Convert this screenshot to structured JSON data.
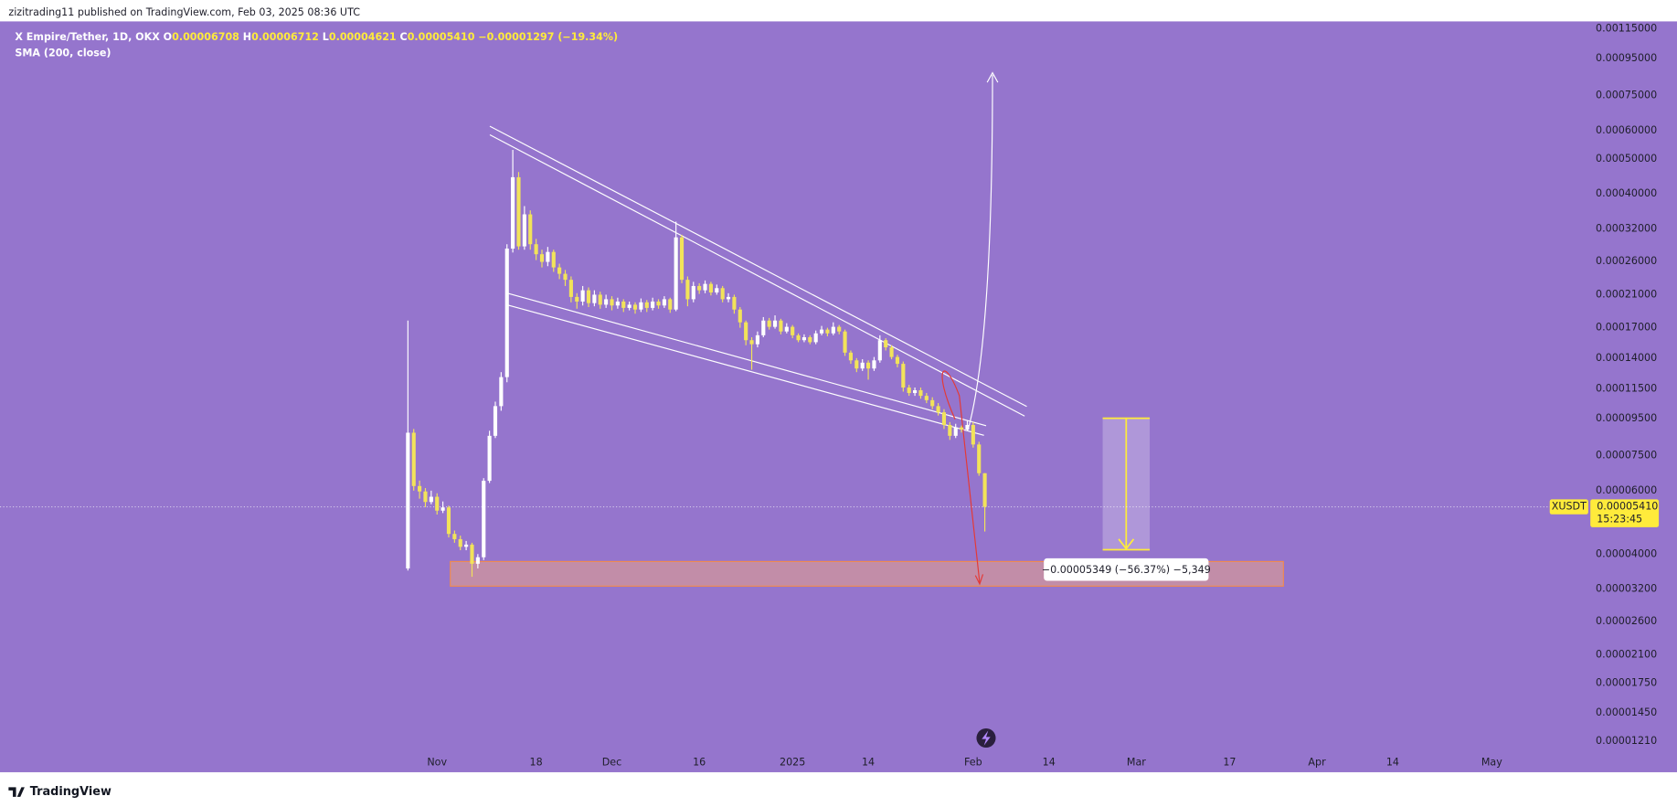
{
  "header": {
    "published": "zizitrading11 published on TradingView.com, Feb 03, 2025 08:36 UTC"
  },
  "chart_data": {
    "type": "candlestick",
    "symbol": "X Empire/Tether, 1D, OKX",
    "ohlc_legend": [
      {
        "key": "O",
        "text": "0.00006708"
      },
      {
        "key": "H",
        "text": "0.00006712"
      },
      {
        "key": "L",
        "text": "0.00004621"
      },
      {
        "key": "C",
        "text": "0.00005410"
      }
    ],
    "change": "−0.00001297 (−19.34%)",
    "indicator": "SMA (200, close)",
    "open": [
      3.65e-05,
      8.69e-05,
      6.18e-05,
      5.97e-05,
      5.58e-05,
      5.77e-05,
      5.28e-05,
      5.39e-05,
      4.55e-05,
      4.4e-05,
      4.19e-05,
      4.25e-05,
      3.76e-05,
      3.92e-05,
      6.39e-05,
      8.52e-05,
      0.000103,
      0.000124,
      0.000282,
      0.000445,
      0.000286,
      0.000351,
      0.00029,
      0.000272,
      0.000259,
      0.000276,
      0.00025,
      0.00024,
      0.000231,
      0.000207,
      0.000201,
      0.000216,
      0.000199,
      0.00021,
      0.000197,
      0.000204,
      0.000196,
      0.000201,
      0.000193,
      0.000197,
      0.000191,
      0.0002,
      0.000193,
      0.000201,
      0.000196,
      0.000204,
      0.000191,
      0.000303,
      0.000231,
      0.000204,
      0.000222,
      0.000216,
      0.000225,
      0.000213,
      0.000219,
      0.000204,
      0.000207,
      0.000191,
      0.000176,
      0.000157,
      0.000153,
      0.000162,
      0.000178,
      0.000171,
      0.000178,
      0.000166,
      0.000171,
      0.000162,
      0.000157,
      0.00016,
      0.000155,
      0.000164,
      0.000168,
      0.000164,
      0.000171,
      0.000166,
      0.000145,
      0.000138,
      0.000131,
      0.000136,
      0.000131,
      0.000138,
      0.000157,
      0.00015,
      0.000141,
      0.000135,
      0.000116,
      0.000112,
      0.000114,
      0.00011,
      0.000107,
      0.000103,
      9.9e-05,
      9.13e-05,
      8.52e-05,
      8.99e-05,
      8.87e-05,
      9.13e-05,
      8.06e-05,
      6.708e-05
    ],
    "high": [
      0.000178,
      8.9e-05,
      6.4e-05,
      6.1e-05,
      6e-05,
      5.9e-05,
      5.6e-05,
      5.45e-05,
      4.65e-05,
      4.5e-05,
      4.35e-05,
      4.3e-05,
      4e-05,
      6.5e-05,
      8.8e-05,
      0.000106,
      0.000128,
      0.00029,
      0.00053,
      0.00046,
      0.00037,
      0.00036,
      0.0003,
      0.00028,
      0.000285,
      0.00028,
      0.000256,
      0.000246,
      0.000236,
      0.000212,
      0.000222,
      0.00022,
      0.000216,
      0.000214,
      0.00021,
      0.000208,
      0.000206,
      0.000204,
      0.000201,
      0.0002,
      0.000205,
      0.000203,
      0.000206,
      0.000204,
      0.000208,
      0.000206,
      0.000335,
      0.000308,
      0.000236,
      0.000228,
      0.000226,
      0.00023,
      0.000228,
      0.000224,
      0.000222,
      0.000212,
      0.00021,
      0.000194,
      0.000178,
      0.00016,
      0.000166,
      0.000182,
      0.000181,
      0.000184,
      0.00018,
      0.000175,
      0.000173,
      0.000164,
      0.000163,
      0.000162,
      0.000167,
      0.000172,
      0.00017,
      0.000176,
      0.000173,
      0.000168,
      0.000147,
      0.00014,
      0.000139,
      0.000138,
      0.000141,
      0.000162,
      0.000159,
      0.000152,
      0.000143,
      0.000137,
      0.000118,
      0.000116,
      0.000116,
      0.000112,
      0.000109,
      0.000105,
      0.000101,
      9.3e-05,
      9.2e-05,
      9.1e-05,
      9.4e-05,
      9.3e-05,
      8.2e-05,
      6.712e-05
    ],
    "low": [
      3.6e-05,
      6e-05,
      5.7e-05,
      5.4e-05,
      5.5e-05,
      5.15e-05,
      5.2e-05,
      4.45e-05,
      4.3e-05,
      4.1e-05,
      4.1e-05,
      3.46e-05,
      3.65e-05,
      3.85e-05,
      6.3e-05,
      8.4e-05,
      0.0001,
      0.00012,
      0.000275,
      0.00028,
      0.00028,
      0.00028,
      0.000262,
      0.00025,
      0.000252,
      0.000243,
      0.000232,
      0.000222,
      0.0002,
      0.000192,
      0.000196,
      0.000194,
      0.000195,
      0.000192,
      0.000193,
      0.00019,
      0.000192,
      0.000188,
      0.00019,
      0.000186,
      0.000188,
      0.000188,
      0.00019,
      0.000192,
      0.000193,
      0.000187,
      0.000189,
      0.000226,
      0.000195,
      0.0002,
      0.000211,
      0.000212,
      0.000209,
      0.00021,
      0.0002,
      0.0002,
      0.000186,
      0.00017,
      0.000152,
      0.00013,
      0.00015,
      0.00016,
      0.000168,
      0.000169,
      0.000163,
      0.000164,
      0.000159,
      0.000155,
      0.000155,
      0.000153,
      0.000153,
      0.000162,
      0.000161,
      0.000162,
      0.000163,
      0.000142,
      0.000135,
      0.000128,
      0.000129,
      0.000122,
      0.000129,
      0.000136,
      0.000147,
      0.000139,
      0.000132,
      0.000113,
      0.00011,
      0.00011,
      0.000108,
      0.000105,
      0.000101,
      9.7e-05,
      8.9e-05,
      8.3e-05,
      8.4e-05,
      8.7e-05,
      8.8e-05,
      7.9e-05,
      6.6e-05,
      4.621e-05
    ],
    "close": [
      8.69e-05,
      6.18e-05,
      5.97e-05,
      5.58e-05,
      5.77e-05,
      5.28e-05,
      5.39e-05,
      4.55e-05,
      4.4e-05,
      4.19e-05,
      4.25e-05,
      3.76e-05,
      3.92e-05,
      6.39e-05,
      8.52e-05,
      0.000103,
      0.000124,
      0.000282,
      0.000445,
      0.000286,
      0.000351,
      0.00029,
      0.000272,
      0.000259,
      0.000276,
      0.00025,
      0.00024,
      0.000231,
      0.000207,
      0.000201,
      0.000216,
      0.000199,
      0.00021,
      0.000197,
      0.000204,
      0.000196,
      0.000201,
      0.000193,
      0.000197,
      0.000191,
      0.0002,
      0.000193,
      0.000201,
      0.000196,
      0.000204,
      0.000191,
      0.000303,
      0.000231,
      0.000204,
      0.000222,
      0.000216,
      0.000225,
      0.000213,
      0.000219,
      0.000204,
      0.000207,
      0.000191,
      0.000176,
      0.000157,
      0.000153,
      0.000162,
      0.000178,
      0.000171,
      0.000178,
      0.000166,
      0.000171,
      0.000162,
      0.000157,
      0.00016,
      0.000155,
      0.000164,
      0.000168,
      0.000164,
      0.000171,
      0.000166,
      0.000145,
      0.000138,
      0.000131,
      0.000136,
      0.000131,
      0.000138,
      0.000157,
      0.00015,
      0.000141,
      0.000135,
      0.000116,
      0.000112,
      0.000114,
      0.00011,
      0.000107,
      0.000103,
      9.9e-05,
      9.13e-05,
      8.52e-05,
      8.99e-05,
      8.87e-05,
      9.13e-05,
      8.06e-05,
      6.708e-05,
      5.41e-05
    ],
    "up_color": "#ffffff",
    "down_color": "#f2e35a",
    "xlim": [
      -70,
      202
    ],
    "xticks": [
      {
        "value": 5,
        "label": "Nov"
      },
      {
        "value": 22,
        "label": "18"
      },
      {
        "value": 35,
        "label": "Dec"
      },
      {
        "value": 50,
        "label": "16"
      },
      {
        "value": 66,
        "label": "2025"
      },
      {
        "value": 79,
        "label": "14"
      },
      {
        "value": 97,
        "label": "Feb"
      },
      {
        "value": 110,
        "label": "14"
      },
      {
        "value": 125,
        "label": "Mar"
      },
      {
        "value": 141,
        "label": "17"
      },
      {
        "value": 156,
        "label": "Apr"
      },
      {
        "value": 169,
        "label": "14"
      },
      {
        "value": 186,
        "label": "May"
      }
    ],
    "ylim": [
      1.114e-05,
      0.001205
    ],
    "log_y": true,
    "yticks": [
      {
        "value": 0.00115,
        "label": "0.00115000"
      },
      {
        "value": 0.00095,
        "label": "0.00095000"
      },
      {
        "value": 0.00075,
        "label": "0.00075000"
      },
      {
        "value": 0.0006,
        "label": "0.00060000"
      },
      {
        "value": 0.0005,
        "label": "0.00050000"
      },
      {
        "value": 0.0004,
        "label": "0.00040000"
      },
      {
        "value": 0.00032,
        "label": "0.00032000"
      },
      {
        "value": 0.00026,
        "label": "0.00026000"
      },
      {
        "value": 0.00021,
        "label": "0.00021000"
      },
      {
        "value": 0.00017,
        "label": "0.00017000"
      },
      {
        "value": 0.00014,
        "label": "0.00014000"
      },
      {
        "value": 0.000115,
        "label": "0.00011500"
      },
      {
        "value": 9.5e-05,
        "label": "0.00009500"
      },
      {
        "value": 7.5e-05,
        "label": "0.00007500"
      },
      {
        "value": 6e-05,
        "label": "0.00006000"
      },
      {
        "value": 4e-05,
        "label": "0.00004000"
      },
      {
        "value": 3.2e-05,
        "label": "0.00003200"
      },
      {
        "value": 2.6e-05,
        "label": "0.00002600"
      },
      {
        "value": 2.1e-05,
        "label": "0.00002100"
      },
      {
        "value": 1.75e-05,
        "label": "0.00001750"
      },
      {
        "value": 1.45e-05,
        "label": "0.00001450"
      },
      {
        "value": 1.21e-05,
        "label": "0.00001210"
      }
    ],
    "last_price": {
      "symbol": "XUSDT",
      "price": "0.00005410",
      "countdown": "15:23:45"
    },
    "measure_label": "−0.00005349 (−56.37%) −5,349"
  },
  "footer": {
    "brand": "TradingView"
  }
}
